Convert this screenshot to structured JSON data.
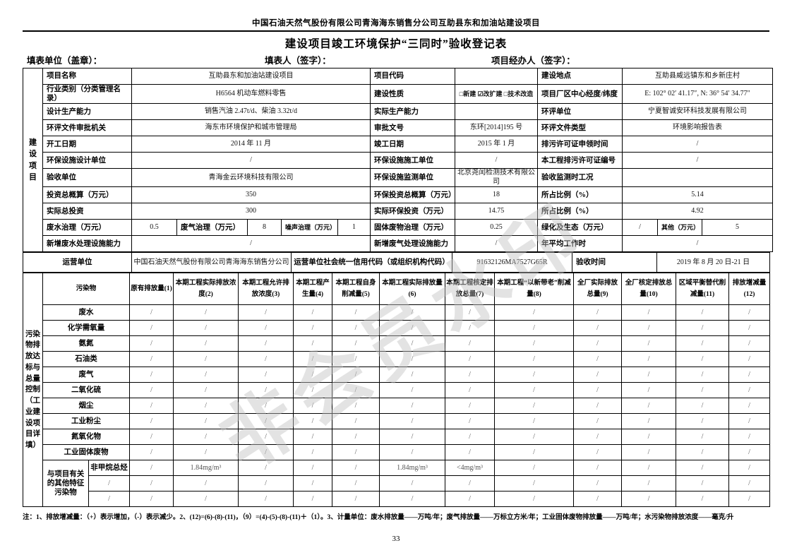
{
  "page": {
    "doc_header": "中国石油天然气股份有限公司青海海东销售分公司互助县东和加油站建设项目",
    "title": "建设项目竣工环境保护“三同时”验收登记表",
    "sign_unit": "填表单位（盖章）：",
    "sign_person": "填表人（签字）：",
    "sign_handler": "项目经办人（签字）：",
    "watermark": "非会员水印",
    "page_number": "33"
  },
  "upper": {
    "side_label": "建设项目",
    "rows": [
      [
        {
          "t": "项目名称",
          "l": 1
        },
        {
          "t": "互助县东和加油站建设项目",
          "cs": 5
        },
        {
          "t": "项目代码",
          "l": 1
        },
        {
          "t": ""
        },
        {
          "t": "建设地点",
          "l": 1
        },
        {
          "t": "互助县威远镇东和乡新庄村",
          "cs": 3
        }
      ],
      [
        {
          "t": "行业类别（分类管理名录）",
          "l": 1
        },
        {
          "t": "H6564 机动车燃料零售",
          "cs": 5
        },
        {
          "t": "建设性质",
          "l": 1
        },
        {
          "t": "□新建 ☑改扩建 □技术改造",
          "b": 1,
          "sm": 1
        },
        {
          "t": "项目厂区中心经度/纬度",
          "l": 1
        },
        {
          "t": "E: 102° 02′ 41.17″, N: 36° 54′ 34.77″",
          "cs": 3
        }
      ],
      [
        {
          "t": "设计生产能力",
          "l": 1
        },
        {
          "t": "销售汽油 2.47t/d、柴油 3.32t/d",
          "cs": 5
        },
        {
          "t": "实际生产能力",
          "l": 1
        },
        {
          "t": ""
        },
        {
          "t": "环评单位",
          "l": 1
        },
        {
          "t": "宁夏智诚安环科技发展有限公司",
          "cs": 3
        }
      ],
      [
        {
          "t": "环评文件审批机关",
          "l": 1
        },
        {
          "t": "海东市环境保护和城市管理局",
          "cs": 5
        },
        {
          "t": "审批文号",
          "l": 1
        },
        {
          "t": "东环[2014]195 号"
        },
        {
          "t": "环评文件类型",
          "l": 1
        },
        {
          "t": "环境影响报告表",
          "cs": 3
        }
      ],
      [
        {
          "t": "开工日期",
          "l": 1
        },
        {
          "t": "2014 年 11 月",
          "cs": 5
        },
        {
          "t": "竣工日期",
          "l": 1
        },
        {
          "t": "2015 年 1 月"
        },
        {
          "t": "排污许可证申领时间",
          "l": 1
        },
        {
          "t": "/",
          "cs": 3
        }
      ],
      [
        {
          "t": "环保设施设计单位",
          "l": 1
        },
        {
          "t": "/",
          "cs": 5
        },
        {
          "t": "环保设施施工单位",
          "l": 1
        },
        {
          "t": "/"
        },
        {
          "t": "本工程排污许可证编号",
          "l": 1
        },
        {
          "t": "/",
          "cs": 3
        }
      ],
      [
        {
          "t": "验收单位",
          "l": 1
        },
        {
          "t": "青海金云环境科技有限公司",
          "cs": 5
        },
        {
          "t": "环保设施监测单位",
          "l": 1
        },
        {
          "t": "北京尧闰检测技术有限公司"
        },
        {
          "t": "验收监测时工况",
          "l": 1
        },
        {
          "t": "",
          "cs": 3
        }
      ],
      [
        {
          "t": "投资总概算（万元）",
          "l": 1
        },
        {
          "t": "350",
          "cs": 5
        },
        {
          "t": "环保投资总概算（万元）",
          "l": 1
        },
        {
          "t": "18"
        },
        {
          "t": "所占比例（%）",
          "l": 1
        },
        {
          "t": "5.14",
          "cs": 3
        }
      ],
      [
        {
          "t": "实际总投资",
          "l": 1
        },
        {
          "t": "300",
          "cs": 5
        },
        {
          "t": "实际环保投资（万元）",
          "l": 1
        },
        {
          "t": "14.75"
        },
        {
          "t": "所占比例（%）",
          "l": 1
        },
        {
          "t": "4.92",
          "cs": 3
        }
      ],
      [
        {
          "t": "废水治理（万元）",
          "l": 1
        },
        {
          "t": "0.5"
        },
        {
          "t": "废气治理（万元）",
          "l": 1
        },
        {
          "t": "8"
        },
        {
          "t": "噪声治理（万元）",
          "l": 1,
          "sm": 1
        },
        {
          "t": "1"
        },
        {
          "t": "固体废物治理（万元）",
          "l": 1
        },
        {
          "t": "0.25"
        },
        {
          "t": "绿化及生态（万元）",
          "l": 1
        },
        {
          "t": "/"
        },
        {
          "t": "其他（万元）",
          "l": 1,
          "sm": 1
        },
        {
          "t": "5"
        }
      ],
      [
        {
          "t": "新增废水处理设施能力",
          "l": 1
        },
        {
          "t": "/",
          "cs": 5
        },
        {
          "t": "新增废气处理设施能力",
          "l": 1
        },
        {
          "t": "/"
        },
        {
          "t": "年平均工作时",
          "l": 1
        },
        {
          "t": "/",
          "cs": 3
        }
      ]
    ]
  },
  "operator": {
    "cells": [
      {
        "t": "运营单位",
        "l": 1,
        "ctr": 1
      },
      {
        "t": "中国石油天然气股份有限公司青海海东销售分公司"
      },
      {
        "t": "运营单位社会统一信用代码（或组织机构代码）",
        "l": 1,
        "ctr": 1
      },
      {
        "t": "91632126MA7527G65R"
      },
      {
        "t": "验收时间",
        "l": 1
      },
      {
        "t": "2019 年 8 月 20 日-21 日"
      }
    ]
  },
  "pollutant": {
    "side_label": "污染物排放达标与总量控制（工业建设项目详填）",
    "col_header": "污染物",
    "headers": [
      "原有排放量(1)",
      "本期工程实际排放浓度(2)",
      "本期工程允许排放浓度(3)",
      "本期工程产生量(4)",
      "本期工程自身削减量(5)",
      "本期工程实际排放量(6)",
      "本期工程核定排放总量(7)",
      "本期工程“以新带老”削减量(8)",
      "全厂实际排放总量(9)",
      "全厂核定排放总量(10)",
      "区域平衡替代削减量(11)",
      "排放增减量(12)"
    ],
    "rows": [
      {
        "name": "废水",
        "v": [
          "/",
          "/",
          "/",
          "/",
          "/",
          "/",
          "/",
          "/",
          "/",
          "/",
          "/",
          "/"
        ]
      },
      {
        "name": "化学需氧量",
        "v": [
          "/",
          "/",
          "/",
          "/",
          "/",
          "/",
          "/",
          "/",
          "/",
          "/",
          "/",
          "/"
        ]
      },
      {
        "name": "氨氮",
        "v": [
          "/",
          "/",
          "/",
          "/",
          "/",
          "/",
          "/",
          "/",
          "/",
          "/",
          "/",
          "/"
        ]
      },
      {
        "name": "石油类",
        "v": [
          "/",
          "/",
          "/",
          "/",
          "/",
          "/",
          "/",
          "/",
          "/",
          "/",
          "/",
          "/"
        ]
      },
      {
        "name": "废气",
        "v": [
          "/",
          "/",
          "/",
          "/",
          "/",
          "/",
          "/",
          "/",
          "/",
          "/",
          "/",
          "/"
        ]
      },
      {
        "name": "二氧化硫",
        "v": [
          "/",
          "/",
          "/",
          "/",
          "/",
          "/",
          "/",
          "/",
          "/",
          "/",
          "/",
          "/"
        ]
      },
      {
        "name": "烟尘",
        "v": [
          "/",
          "/",
          "/",
          "/",
          "/",
          "/",
          "/",
          "/",
          "/",
          "/",
          "/",
          "/"
        ]
      },
      {
        "name": "工业粉尘",
        "v": [
          "/",
          "/",
          "/",
          "/",
          "/",
          "/",
          "/",
          "/",
          "/",
          "/",
          "/",
          "/"
        ]
      },
      {
        "name": "氮氧化物",
        "v": [
          "/",
          "/",
          "/",
          "/",
          "/",
          "/",
          "/",
          "/",
          "/",
          "/",
          "/",
          "/"
        ]
      },
      {
        "name": "工业固体废物",
        "v": [
          "/",
          "/",
          "/",
          "/",
          "/",
          "/",
          "/",
          "/",
          "/",
          "/",
          "/",
          "/"
        ]
      }
    ],
    "special": {
      "label": "与项目有关的其他特征污染物",
      "rows": [
        {
          "name": "非甲烷总烃",
          "v": [
            "/",
            "1.84mg/m³",
            "/",
            "/",
            "/",
            "1.84mg/m³",
            "<4mg/m³",
            "/",
            "/",
            "/",
            "/",
            "/"
          ]
        },
        {
          "name": "/",
          "v": [
            "/",
            "/",
            "/",
            "/",
            "/",
            "/",
            "/",
            "/",
            "/",
            "/",
            "/",
            "/"
          ]
        },
        {
          "name": "/",
          "v": [
            "/",
            "/",
            "/",
            "/",
            "/",
            "/",
            "/",
            "/",
            "/",
            "/",
            "/",
            "/"
          ]
        }
      ]
    }
  },
  "note": {
    "prefix": "注：",
    "text": "1、排放增减量：（+）表示增加，（-）表示减少。2、(12)=(6)-(8)-(11)，（9）=(4)-(5)-(8)-(11)＋（1）。3、计量单位：废水排放量——万吨/年；废气排放量——万标立方米/年；工业固体废物排放量——万吨/年；水污染物排放浓度——毫克/升"
  }
}
